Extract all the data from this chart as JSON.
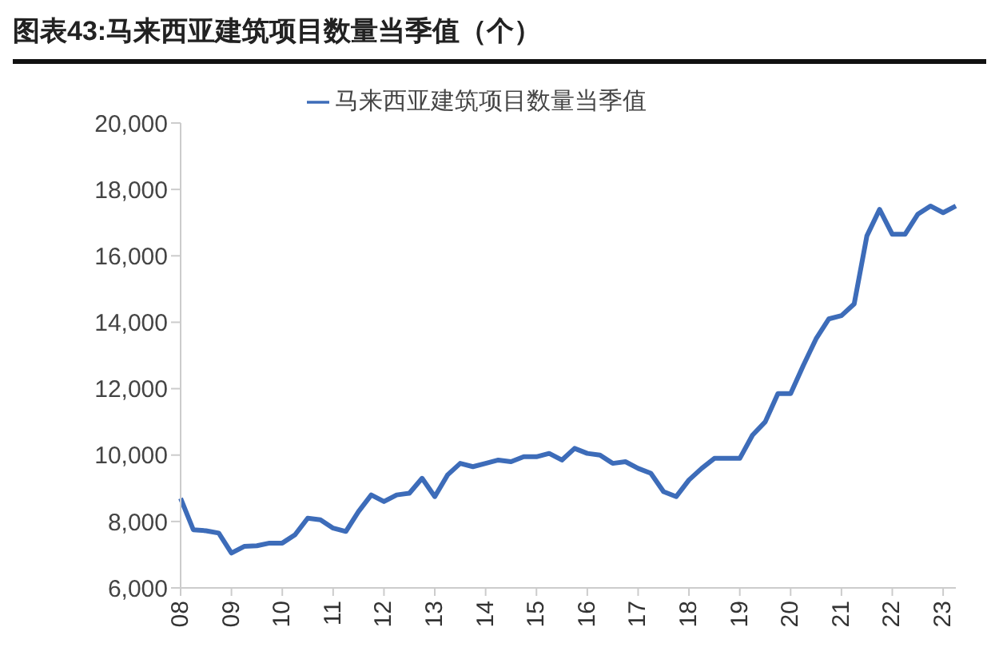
{
  "chart_data": {
    "type": "line",
    "title": "图表43:马来西亚建筑项目数量当季值（个）",
    "categories": [
      "08",
      null,
      null,
      null,
      "09",
      null,
      null,
      null,
      "10",
      null,
      null,
      null,
      "11",
      null,
      null,
      null,
      "12",
      null,
      null,
      null,
      "13",
      null,
      null,
      null,
      "14",
      null,
      null,
      null,
      "15",
      null,
      null,
      null,
      "16",
      null,
      null,
      null,
      "17",
      null,
      null,
      null,
      "18",
      null,
      null,
      null,
      "19",
      null,
      null,
      null,
      "20",
      null,
      null,
      null,
      "21",
      null,
      null,
      null,
      "22",
      null,
      null,
      null,
      "23",
      null
    ],
    "series": [
      {
        "name": "马来西亚建筑项目数量当季值",
        "color": "#3d6cb9",
        "values": [
          8700,
          7750,
          7720,
          7650,
          7050,
          7250,
          7270,
          7350,
          7350,
          7600,
          8100,
          8050,
          7800,
          7700,
          8300,
          8800,
          8600,
          8800,
          8850,
          9300,
          8750,
          9400,
          9750,
          9650,
          9750,
          9850,
          9800,
          9950,
          9950,
          10050,
          9850,
          10200,
          10050,
          10000,
          9750,
          9800,
          9600,
          9450,
          8900,
          8750,
          9250,
          9600,
          9900,
          9900,
          9900,
          10600,
          11000,
          11850,
          11850,
          12700,
          13500,
          14100,
          14200,
          14550,
          16600,
          17400,
          16650,
          16650,
          17250,
          17500,
          17300,
          17500
        ]
      }
    ],
    "ylim": [
      6000,
      20000
    ],
    "yticks": [
      {
        "value": 6000,
        "label": "6,000"
      },
      {
        "value": 8000,
        "label": "8,000"
      },
      {
        "value": 10000,
        "label": "10,000"
      },
      {
        "value": 12000,
        "label": "12,000"
      },
      {
        "value": 14000,
        "label": "14,000"
      },
      {
        "value": 16000,
        "label": "16,000"
      },
      {
        "value": 18000,
        "label": "18,000"
      },
      {
        "value": 20000,
        "label": "20,000"
      }
    ],
    "grid": false,
    "legend": "top",
    "marker": "none",
    "line_style": "solid"
  }
}
